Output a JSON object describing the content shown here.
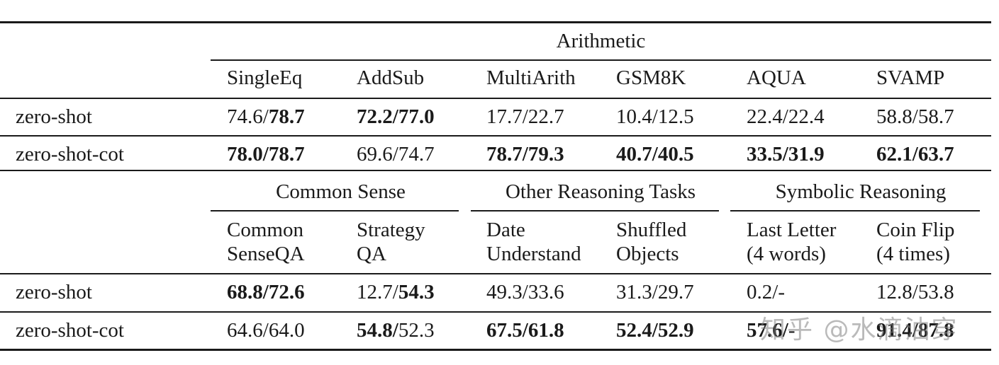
{
  "top": {
    "group": "Arithmetic",
    "columns": [
      "SingleEq",
      "AddSub",
      "MultiArith",
      "GSM8K",
      "AQUA",
      "SVAMP"
    ],
    "rows": [
      {
        "label": "zero-shot",
        "cells": [
          {
            "a": "74.6/",
            "b": "78.7",
            "a_bold": false,
            "b_bold": true
          },
          {
            "a": "72.2/",
            "b": "77.0",
            "a_bold": true,
            "b_bold": true
          },
          {
            "a": "17.7/",
            "b": "22.7",
            "a_bold": false,
            "b_bold": false
          },
          {
            "a": "10.4/",
            "b": "12.5",
            "a_bold": false,
            "b_bold": false
          },
          {
            "a": "22.4/",
            "b": "22.4",
            "a_bold": false,
            "b_bold": false
          },
          {
            "a": "58.8/",
            "b": "58.7",
            "a_bold": false,
            "b_bold": false
          }
        ]
      },
      {
        "label": "zero-shot-cot",
        "cells": [
          {
            "a": "78.0/",
            "b": "78.7",
            "a_bold": true,
            "b_bold": true
          },
          {
            "a": "69.6/",
            "b": "74.7",
            "a_bold": false,
            "b_bold": false
          },
          {
            "a": "78.7/",
            "b": "79.3",
            "a_bold": true,
            "b_bold": true
          },
          {
            "a": "40.7/",
            "b": "40.5",
            "a_bold": true,
            "b_bold": true
          },
          {
            "a": "33.5/",
            "b": "31.9",
            "a_bold": true,
            "b_bold": true
          },
          {
            "a": "62.1/",
            "b": "63.7",
            "a_bold": true,
            "b_bold": true
          }
        ]
      }
    ]
  },
  "bottom": {
    "groups": [
      "Common Sense",
      "Other Reasoning Tasks",
      "Symbolic Reasoning"
    ],
    "columns": [
      {
        "l1": "Common",
        "l2": "SenseQA"
      },
      {
        "l1": "Strategy",
        "l2": "QA"
      },
      {
        "l1": "Date",
        "l2": "Understand"
      },
      {
        "l1": "Shuffled",
        "l2": "Objects"
      },
      {
        "l1": "Last Letter",
        "l2": "(4 words)"
      },
      {
        "l1": "Coin Flip",
        "l2": "(4 times)"
      }
    ],
    "rows": [
      {
        "label": "zero-shot",
        "cells": [
          {
            "a": "68.8/",
            "b": "72.6",
            "a_bold": true,
            "b_bold": true
          },
          {
            "a": "12.7/",
            "b": "54.3",
            "a_bold": false,
            "b_bold": true
          },
          {
            "a": "49.3/",
            "b": "33.6",
            "a_bold": false,
            "b_bold": false
          },
          {
            "a": "31.3/",
            "b": "29.7",
            "a_bold": false,
            "b_bold": false
          },
          {
            "a": "0.2/",
            "b": "-",
            "a_bold": false,
            "b_bold": false
          },
          {
            "a": "12.8/",
            "b": "53.8",
            "a_bold": false,
            "b_bold": false
          }
        ]
      },
      {
        "label": "zero-shot-cot",
        "cells": [
          {
            "a": "64.6/",
            "b": "64.0",
            "a_bold": false,
            "b_bold": false
          },
          {
            "a": "54.8/",
            "b": "52.3",
            "a_bold": true,
            "b_bold": false
          },
          {
            "a": "67.5/",
            "b": "61.8",
            "a_bold": true,
            "b_bold": true
          },
          {
            "a": "52.4/",
            "b": "52.9",
            "a_bold": true,
            "b_bold": true
          },
          {
            "a": "57.6/",
            "b": "-",
            "a_bold": true,
            "b_bold": false
          },
          {
            "a": "91.4/",
            "b": "87.8",
            "a_bold": true,
            "b_bold": true
          }
        ]
      }
    ]
  },
  "watermark": "知乎 @水滴油穿"
}
